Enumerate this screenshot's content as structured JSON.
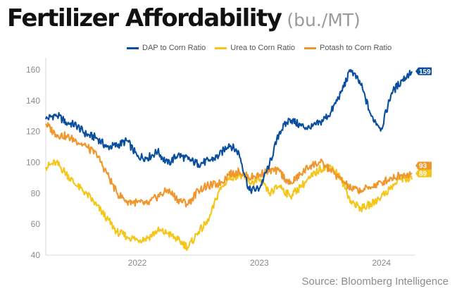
{
  "title": "Fertilizer Affordability",
  "subtitle": "(bu./MT)",
  "source": "Source: Bloomberg Intelligence",
  "chart_data": {
    "type": "line",
    "title": "Fertilizer Affordability",
    "subtitle": "(bu./MT)",
    "xlabel": "",
    "ylabel": "",
    "x_range": [
      "2021-06",
      "2024-06"
    ],
    "ylim": [
      40,
      165
    ],
    "y_ticks": [
      40,
      60,
      80,
      100,
      120,
      140,
      160
    ],
    "x_ticks": [
      {
        "label": "2022",
        "x": "2022-03"
      },
      {
        "label": "2023",
        "x": "2023-03"
      },
      {
        "label": "2024",
        "x": "2024-03"
      }
    ],
    "grid": false,
    "legend_position": "top-right",
    "series": [
      {
        "name": "DAP to Corn Ratio",
        "color": "#0a4f9e",
        "end_label": "159",
        "points": [
          [
            "2021-06",
            128
          ],
          [
            "2021-07",
            131
          ],
          [
            "2021-08",
            126
          ],
          [
            "2021-09",
            124
          ],
          [
            "2021-10",
            118
          ],
          [
            "2021-11",
            116
          ],
          [
            "2021-12",
            110
          ],
          [
            "2022-01",
            111
          ],
          [
            "2022-02",
            114
          ],
          [
            "2022-03",
            104
          ],
          [
            "2022-04",
            103
          ],
          [
            "2022-05",
            107
          ],
          [
            "2022-06",
            99
          ],
          [
            "2022-07",
            105
          ],
          [
            "2022-08",
            102
          ],
          [
            "2022-09",
            99
          ],
          [
            "2022-10",
            101
          ],
          [
            "2022-11",
            104
          ],
          [
            "2022-12",
            112
          ],
          [
            "2023-01",
            106
          ],
          [
            "2023-02",
            82
          ],
          [
            "2023-03",
            83
          ],
          [
            "2023-04",
            99
          ],
          [
            "2023-05",
            120
          ],
          [
            "2023-06",
            128
          ],
          [
            "2023-07",
            124
          ],
          [
            "2023-08",
            122
          ],
          [
            "2023-09",
            126
          ],
          [
            "2023-10",
            132
          ],
          [
            "2023-11",
            145
          ],
          [
            "2023-12",
            160
          ],
          [
            "2024-01",
            150
          ],
          [
            "2024-02",
            130
          ],
          [
            "2024-03",
            122
          ],
          [
            "2024-04",
            145
          ],
          [
            "2024-05",
            153
          ],
          [
            "2024-06",
            159
          ]
        ]
      },
      {
        "name": "Urea to Corn Ratio",
        "color": "#f5c518",
        "end_label": "89",
        "points": [
          [
            "2021-06",
            97
          ],
          [
            "2021-07",
            100
          ],
          [
            "2021-08",
            93
          ],
          [
            "2021-09",
            85
          ],
          [
            "2021-10",
            80
          ],
          [
            "2021-11",
            72
          ],
          [
            "2021-12",
            64
          ],
          [
            "2022-01",
            55
          ],
          [
            "2022-02",
            52
          ],
          [
            "2022-03",
            50
          ],
          [
            "2022-04",
            51
          ],
          [
            "2022-05",
            56
          ],
          [
            "2022-06",
            54
          ],
          [
            "2022-07",
            50
          ],
          [
            "2022-08",
            45
          ],
          [
            "2022-09",
            55
          ],
          [
            "2022-10",
            62
          ],
          [
            "2022-11",
            81
          ],
          [
            "2022-12",
            90
          ],
          [
            "2023-01",
            92
          ],
          [
            "2023-02",
            87
          ],
          [
            "2023-03",
            88
          ],
          [
            "2023-04",
            80
          ],
          [
            "2023-05",
            85
          ],
          [
            "2023-06",
            78
          ],
          [
            "2023-07",
            84
          ],
          [
            "2023-08",
            90
          ],
          [
            "2023-09",
            96
          ],
          [
            "2023-10",
            98
          ],
          [
            "2023-11",
            90
          ],
          [
            "2023-12",
            75
          ],
          [
            "2024-01",
            70
          ],
          [
            "2024-02",
            73
          ],
          [
            "2024-03",
            78
          ],
          [
            "2024-04",
            84
          ],
          [
            "2024-05",
            90
          ],
          [
            "2024-06",
            89
          ]
        ]
      },
      {
        "name": "Potash to Corn Ratio",
        "color": "#f0962b",
        "end_label": "93",
        "points": [
          [
            "2021-06",
            125
          ],
          [
            "2021-07",
            118
          ],
          [
            "2021-08",
            117
          ],
          [
            "2021-09",
            114
          ],
          [
            "2021-10",
            110
          ],
          [
            "2021-11",
            105
          ],
          [
            "2021-12",
            93
          ],
          [
            "2022-01",
            80
          ],
          [
            "2022-02",
            75
          ],
          [
            "2022-03",
            74
          ],
          [
            "2022-04",
            73
          ],
          [
            "2022-05",
            78
          ],
          [
            "2022-06",
            82
          ],
          [
            "2022-07",
            76
          ],
          [
            "2022-08",
            73
          ],
          [
            "2022-09",
            82
          ],
          [
            "2022-10",
            85
          ],
          [
            "2022-11",
            86
          ],
          [
            "2022-12",
            92
          ],
          [
            "2023-01",
            94
          ],
          [
            "2023-02",
            90
          ],
          [
            "2023-03",
            92
          ],
          [
            "2023-04",
            95
          ],
          [
            "2023-05",
            94
          ],
          [
            "2023-06",
            86
          ],
          [
            "2023-07",
            92
          ],
          [
            "2023-08",
            98
          ],
          [
            "2023-09",
            100
          ],
          [
            "2023-10",
            95
          ],
          [
            "2023-11",
            89
          ],
          [
            "2023-12",
            83
          ],
          [
            "2024-01",
            82
          ],
          [
            "2024-02",
            84
          ],
          [
            "2024-03",
            87
          ],
          [
            "2024-04",
            90
          ],
          [
            "2024-05",
            92
          ],
          [
            "2024-06",
            93
          ]
        ]
      }
    ]
  }
}
